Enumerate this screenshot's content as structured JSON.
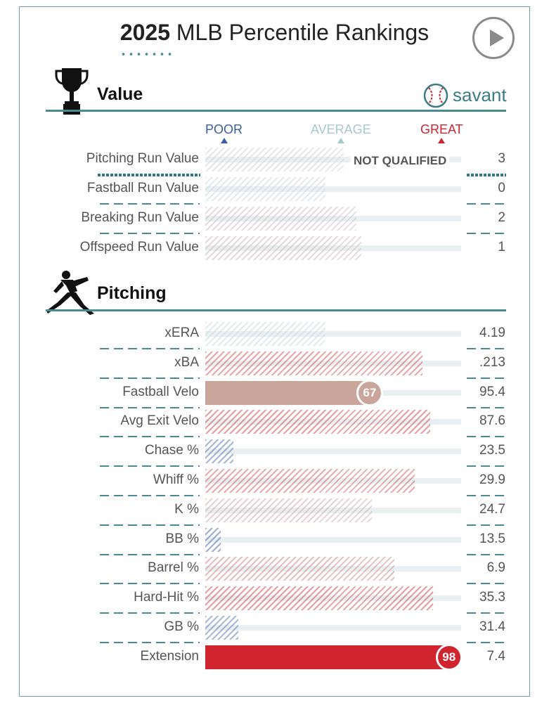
{
  "header": {
    "year": "2025",
    "title": "MLB Percentile Rankings"
  },
  "controls": {
    "play_icon": "play-icon"
  },
  "value_section": {
    "title": "Value",
    "icon": "trophy-icon",
    "logo_text": "savant"
  },
  "pitching_section": {
    "title": "Pitching",
    "icon": "pitcher-silhouette-icon"
  },
  "legend": {
    "poor": "POOR",
    "average": "AVERAGE",
    "great": "GREAT",
    "poor_color": "#3b5ea3",
    "average_color": "#a9c7cc",
    "great_color": "#cc2630"
  },
  "not_qualified": "NOT QUALIFIED",
  "colors": {
    "accent": "#4a8a92",
    "great": "#d0252f",
    "poor": "#3b5ea3"
  },
  "chart_data": [
    {
      "type": "bar",
      "title": "Value",
      "metric": "percentile",
      "xlim": [
        0,
        100
      ],
      "rows": [
        {
          "label": "Pitching Run Value",
          "value": "3",
          "percentile": 54,
          "qualified": false
        },
        {
          "label": "Fastball Run Value",
          "value": "0",
          "percentile": 47,
          "qualified": false
        },
        {
          "label": "Breaking Run Value",
          "value": "2",
          "percentile": 59,
          "qualified": false
        },
        {
          "label": "Offspeed Run Value",
          "value": "1",
          "percentile": 61,
          "qualified": false
        }
      ]
    },
    {
      "type": "bar",
      "title": "Pitching",
      "metric": "percentile",
      "xlim": [
        0,
        100
      ],
      "rows": [
        {
          "label": "xERA",
          "value": "4.19",
          "percentile": 47,
          "qualified": false
        },
        {
          "label": "xBA",
          "value": ".213",
          "percentile": 85,
          "qualified": false
        },
        {
          "label": "Fastball Velo",
          "value": "95.4",
          "percentile": 67,
          "qualified": true,
          "badge": "67"
        },
        {
          "label": "Avg Exit Velo",
          "value": "87.6",
          "percentile": 88,
          "qualified": false
        },
        {
          "label": "Chase %",
          "value": "23.5",
          "percentile": 11,
          "qualified": false
        },
        {
          "label": "Whiff %",
          "value": "29.9",
          "percentile": 82,
          "qualified": false
        },
        {
          "label": "K %",
          "value": "24.7",
          "percentile": 65,
          "qualified": false
        },
        {
          "label": "BB %",
          "value": "13.5",
          "percentile": 6,
          "qualified": false
        },
        {
          "label": "Barrel %",
          "value": "6.9",
          "percentile": 74,
          "qualified": false
        },
        {
          "label": "Hard-Hit %",
          "value": "35.3",
          "percentile": 89,
          "qualified": false
        },
        {
          "label": "GB %",
          "value": "31.4",
          "percentile": 13,
          "qualified": false
        },
        {
          "label": "Extension",
          "value": "7.4",
          "percentile": 98,
          "qualified": true,
          "badge": "98"
        }
      ]
    }
  ]
}
